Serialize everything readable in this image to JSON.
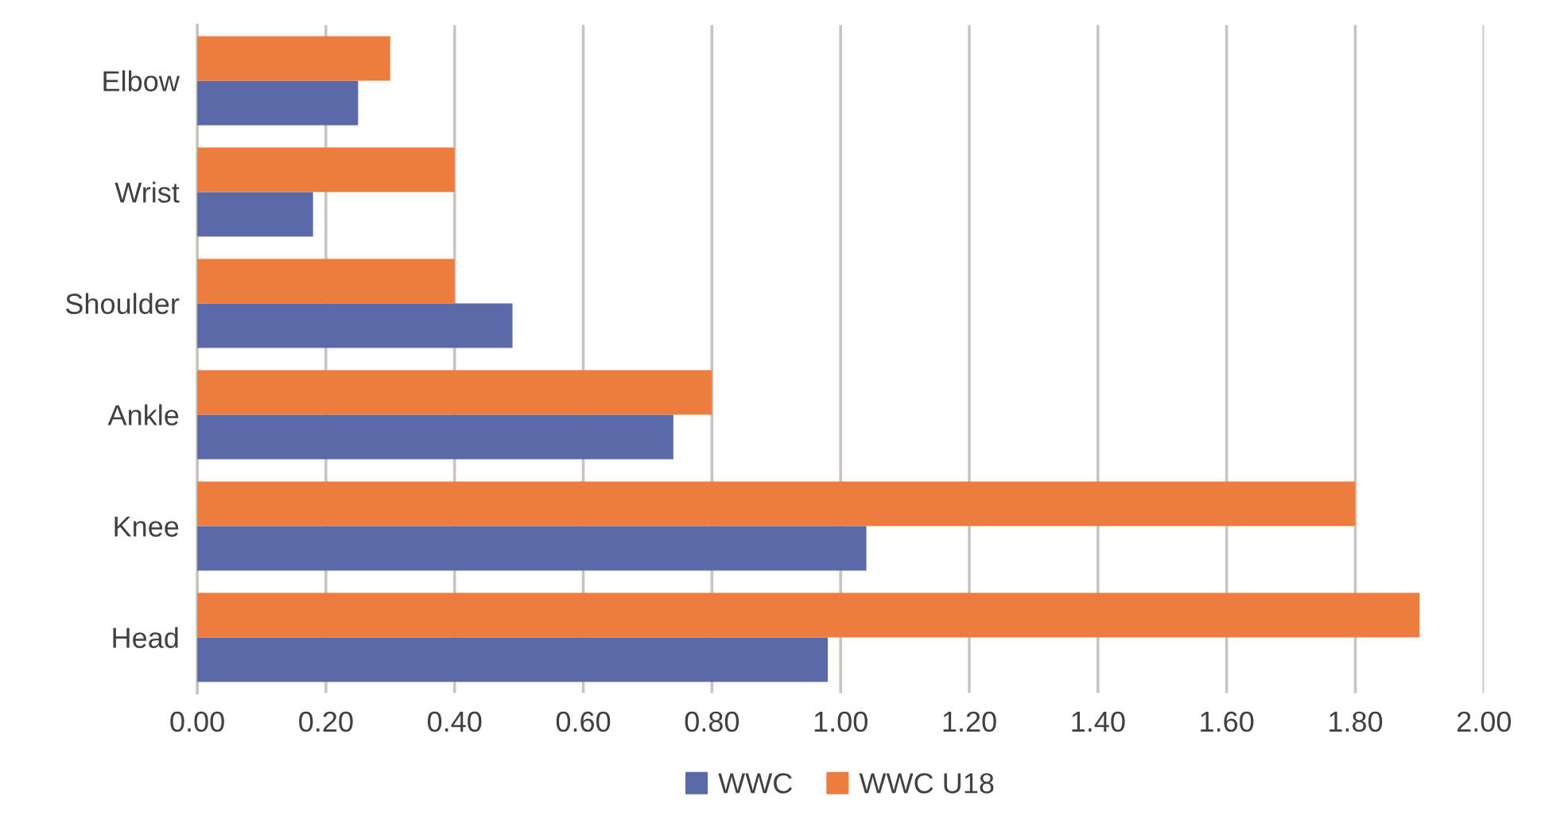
{
  "chart_data": {
    "type": "bar",
    "orientation": "horizontal",
    "categories": [
      "Elbow",
      "Wrist",
      "Shoulder",
      "Ankle",
      "Knee",
      "Head"
    ],
    "series": [
      {
        "name": "WWC",
        "color": "#5a6aa8",
        "values": [
          0.25,
          0.18,
          0.49,
          0.74,
          1.04,
          0.98
        ]
      },
      {
        "name": "WWC U18",
        "color": "#ed7d3e",
        "values": [
          0.3,
          0.4,
          0.4,
          0.8,
          1.8,
          1.9
        ]
      }
    ],
    "xlim": [
      0,
      2
    ],
    "xticks": [
      {
        "value": 0,
        "label": "0.00"
      },
      {
        "value": 0.2,
        "label": "0.20"
      },
      {
        "value": 0.4,
        "label": "0.40"
      },
      {
        "value": 0.6,
        "label": "0.60"
      },
      {
        "value": 0.8,
        "label": "0.80"
      },
      {
        "value": 1,
        "label": "1.00"
      },
      {
        "value": 1.2,
        "label": "1.20"
      },
      {
        "value": 1.4,
        "label": "1.40"
      },
      {
        "value": 1.6,
        "label": "1.60"
      },
      {
        "value": 1.8,
        "label": "1.80"
      },
      {
        "value": 2,
        "label": "2.00"
      }
    ],
    "grid": "x",
    "legend": "bottom"
  }
}
